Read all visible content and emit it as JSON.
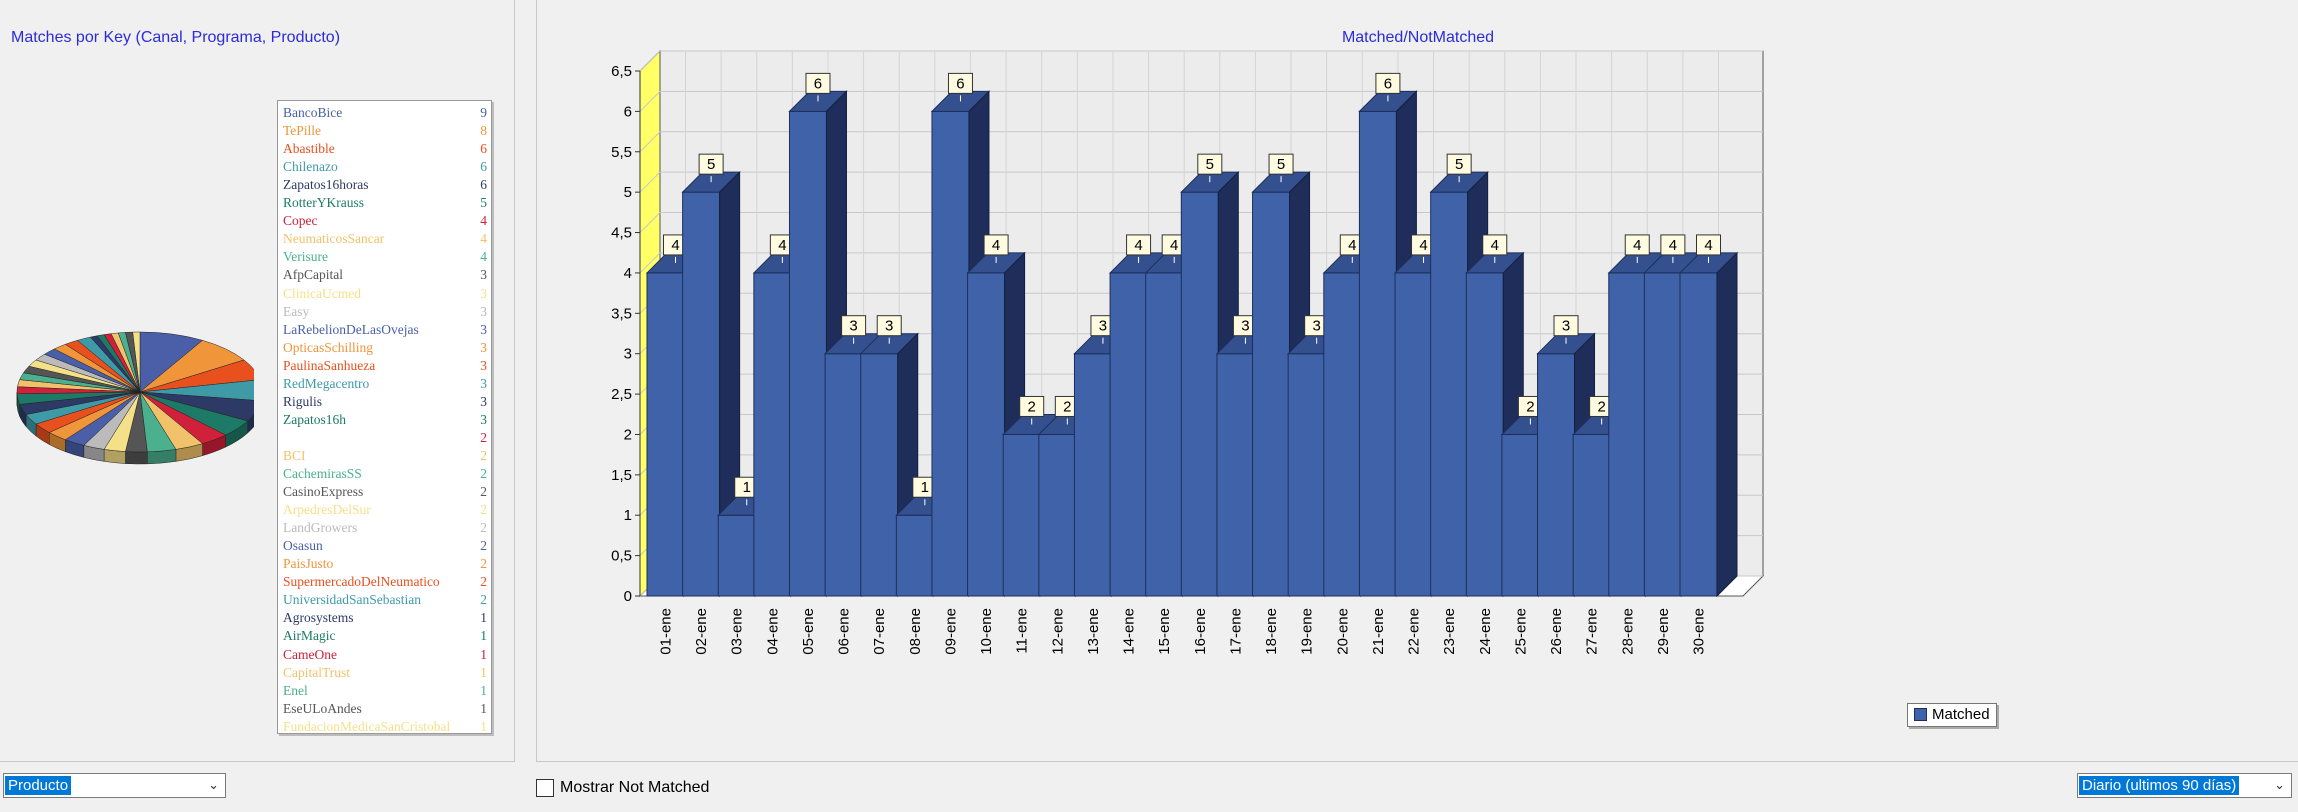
{
  "left_panel": {
    "title": "Matches por Key (Canal, Programa, Producto)",
    "legend": [
      {
        "name": "BancoBice",
        "value": 9,
        "color": "#4a5fa8"
      },
      {
        "name": "TePille",
        "value": 8,
        "color": "#f0953a"
      },
      {
        "name": "Abastible",
        "value": 6,
        "color": "#e8501e"
      },
      {
        "name": "Chilenazo",
        "value": 6,
        "color": "#3f9aa8"
      },
      {
        "name": "Zapatos16horas",
        "value": 6,
        "color": "#2d3a66"
      },
      {
        "name": "RotterYKrauss",
        "value": 5,
        "color": "#1d7a66"
      },
      {
        "name": "Copec",
        "value": 4,
        "color": "#d0203a"
      },
      {
        "name": "NeumaticosSancar",
        "value": 4,
        "color": "#f2c26a"
      },
      {
        "name": "Verisure",
        "value": 4,
        "color": "#4bb08e"
      },
      {
        "name": "AfpCapital",
        "value": 3,
        "color": "#555555"
      },
      {
        "name": "ClinicaUcmed",
        "value": 3,
        "color": "#f5e08a"
      },
      {
        "name": "Easy",
        "value": 3,
        "color": "#bbbbbb"
      },
      {
        "name": "LaRebelionDeLasOvejas",
        "value": 3,
        "color": "#4a5fa8"
      },
      {
        "name": "OpticasSchilling",
        "value": 3,
        "color": "#f0953a"
      },
      {
        "name": "PaulinaSanhueza",
        "value": 3,
        "color": "#e8501e"
      },
      {
        "name": "RedMegacentro",
        "value": 3,
        "color": "#3f9aa8"
      },
      {
        "name": "Rigulis",
        "value": 3,
        "color": "#2d3a66"
      },
      {
        "name": "Zapatos16h",
        "value": 3,
        "color": "#1d7a66"
      },
      {
        "name": "",
        "value": 2,
        "color": "#d0203a"
      },
      {
        "name": "BCI",
        "value": 2,
        "color": "#f2c26a"
      },
      {
        "name": "CachemirasSS",
        "value": 2,
        "color": "#4bb08e"
      },
      {
        "name": "CasinoExpress",
        "value": 2,
        "color": "#555555"
      },
      {
        "name": "ArpedresDelSur",
        "value": 2,
        "color": "#f5e08a"
      },
      {
        "name": "LandGrowers",
        "value": 2,
        "color": "#bbbbbb"
      },
      {
        "name": "Osasun",
        "value": 2,
        "color": "#4a5fa8"
      },
      {
        "name": "PaisJusto",
        "value": 2,
        "color": "#f0953a"
      },
      {
        "name": "SupermercadoDelNeumatico",
        "value": 2,
        "color": "#e8501e"
      },
      {
        "name": "UniversidadSanSebastian",
        "value": 2,
        "color": "#3f9aa8"
      },
      {
        "name": "Agrosystems",
        "value": 1,
        "color": "#2d3a66"
      },
      {
        "name": "AirMagic",
        "value": 1,
        "color": "#1d7a66"
      },
      {
        "name": "CameOne",
        "value": 1,
        "color": "#d0203a"
      },
      {
        "name": "CapitalTrust",
        "value": 1,
        "color": "#f2c26a"
      },
      {
        "name": "Enel",
        "value": 1,
        "color": "#4bb08e"
      },
      {
        "name": "EseULoAndes",
        "value": 1,
        "color": "#555555"
      },
      {
        "name": "FundacionMedicaSanCristobal",
        "value": 1,
        "color": "#f5e08a"
      }
    ],
    "select": {
      "value": "Producto"
    }
  },
  "right_panel": {
    "title": "Matched/NotMatched",
    "checkbox_label": "Mostrar Not Matched",
    "checkbox_checked": false,
    "select": {
      "value": "Diario (ultimos 90 días)"
    }
  },
  "chart_data": {
    "type": "bar",
    "title": "Matched/NotMatched",
    "series": [
      {
        "name": "Matched",
        "color": "#4062a8",
        "points": [
          {
            "x": "01-ene",
            "y": 4
          },
          {
            "x": "02-ene",
            "y": 5
          },
          {
            "x": "03-ene",
            "y": 1
          },
          {
            "x": "04-ene",
            "y": 4
          },
          {
            "x": "05-ene",
            "y": 6
          },
          {
            "x": "06-ene",
            "y": 3
          },
          {
            "x": "07-ene",
            "y": 3
          },
          {
            "x": "08-ene",
            "y": 1
          },
          {
            "x": "09-ene",
            "y": 6
          },
          {
            "x": "10-ene",
            "y": 4
          },
          {
            "x": "11-ene",
            "y": 2
          },
          {
            "x": "12-ene",
            "y": 2
          },
          {
            "x": "13-ene",
            "y": 3
          },
          {
            "x": "14-ene",
            "y": 4
          },
          {
            "x": "15-ene",
            "y": 4
          },
          {
            "x": "16-ene",
            "y": 5
          },
          {
            "x": "17-ene",
            "y": 3
          },
          {
            "x": "18-ene",
            "y": 5
          },
          {
            "x": "19-ene",
            "y": 3
          },
          {
            "x": "20-ene",
            "y": 4
          },
          {
            "x": "21-ene",
            "y": 6
          },
          {
            "x": "22-ene",
            "y": 4
          },
          {
            "x": "23-ene",
            "y": 5
          },
          {
            "x": "24-ene",
            "y": 4
          },
          {
            "x": "25-ene",
            "y": 2
          },
          {
            "x": "26-ene",
            "y": 3
          },
          {
            "x": "27-ene",
            "y": 2
          },
          {
            "x": "28-ene",
            "y": 4
          },
          {
            "x": "29-ene",
            "y": 4
          },
          {
            "x": "30-ene",
            "y": 4
          }
        ]
      }
    ],
    "y_ticks": [
      "0",
      "0,5",
      "1",
      "1,5",
      "2",
      "2,5",
      "3",
      "3,5",
      "4",
      "4,5",
      "5",
      "5,5",
      "6",
      "6,5"
    ],
    "ylim": [
      0,
      6.5
    ],
    "legend": "bottom-center",
    "grid": true,
    "wall_color": "#ffff66"
  }
}
